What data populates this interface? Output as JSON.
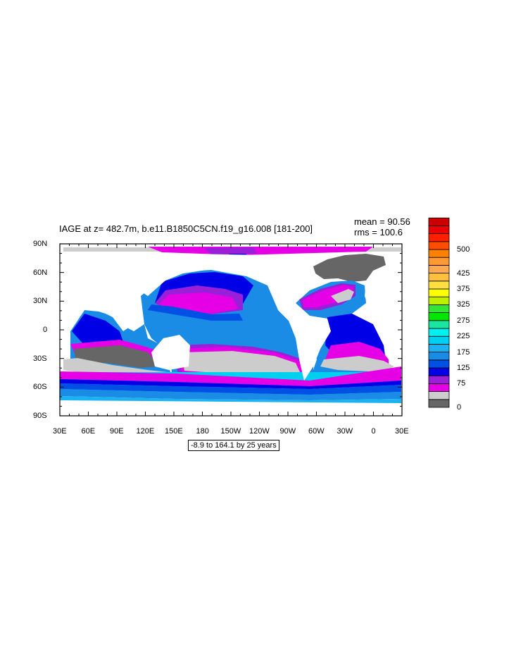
{
  "title": "IAGE at z= 482.7m, b.e11.B1850C5CN.f19_g16.008 [181-200]",
  "stats": {
    "mean": "mean = 90.56",
    "rms": "rms = 100.6"
  },
  "contour_info": "-8.9 to 164.1 by 25 years",
  "map": {
    "projection": "cylindrical equidistant",
    "lon_range": [
      30,
      390
    ],
    "lat_range": [
      -90,
      90
    ],
    "lon_ticks": [
      {
        "value": 30,
        "label": "30E"
      },
      {
        "value": 60,
        "label": "60E"
      },
      {
        "value": 90,
        "label": "90E"
      },
      {
        "value": 120,
        "label": "120E"
      },
      {
        "value": 150,
        "label": "150E"
      },
      {
        "value": 180,
        "label": "180"
      },
      {
        "value": 210,
        "label": "150W"
      },
      {
        "value": 240,
        "label": "120W"
      },
      {
        "value": 270,
        "label": "90W"
      },
      {
        "value": 300,
        "label": "60W"
      },
      {
        "value": 330,
        "label": "30W"
      },
      {
        "value": 360,
        "label": "0"
      },
      {
        "value": 390,
        "label": "30E"
      }
    ],
    "lat_ticks": [
      {
        "value": 90,
        "label": "90N"
      },
      {
        "value": 60,
        "label": "60N"
      },
      {
        "value": 30,
        "label": "30N"
      },
      {
        "value": 0,
        "label": "0"
      },
      {
        "value": -30,
        "label": "30S"
      },
      {
        "value": -60,
        "label": "60S"
      },
      {
        "value": -90,
        "label": "90S"
      }
    ]
  },
  "colorbar": {
    "colors": [
      "#666666",
      "#cccccc",
      "#e600e6",
      "#9a1fd9",
      "#0000e6",
      "#0050e6",
      "#1a8ce6",
      "#1ab2f0",
      "#00d0f0",
      "#00f0f0",
      "#1ae6a0",
      "#00e600",
      "#33e633",
      "#c0f000",
      "#ffff00",
      "#ffe040",
      "#ffc040",
      "#ffaa50",
      "#ff9933",
      "#ff8000",
      "#ff4d00",
      "#ff2000",
      "#ee0000",
      "#cc0000"
    ],
    "labels": [
      {
        "index": 0,
        "text": "0"
      },
      {
        "index": 3,
        "text": "75"
      },
      {
        "index": 5,
        "text": "125"
      },
      {
        "index": 7,
        "text": "175"
      },
      {
        "index": 9,
        "text": "225"
      },
      {
        "index": 11,
        "text": "275"
      },
      {
        "index": 13,
        "text": "325"
      },
      {
        "index": 15,
        "text": "375"
      },
      {
        "index": 17,
        "text": "425"
      },
      {
        "index": 20,
        "text": "500"
      }
    ]
  }
}
